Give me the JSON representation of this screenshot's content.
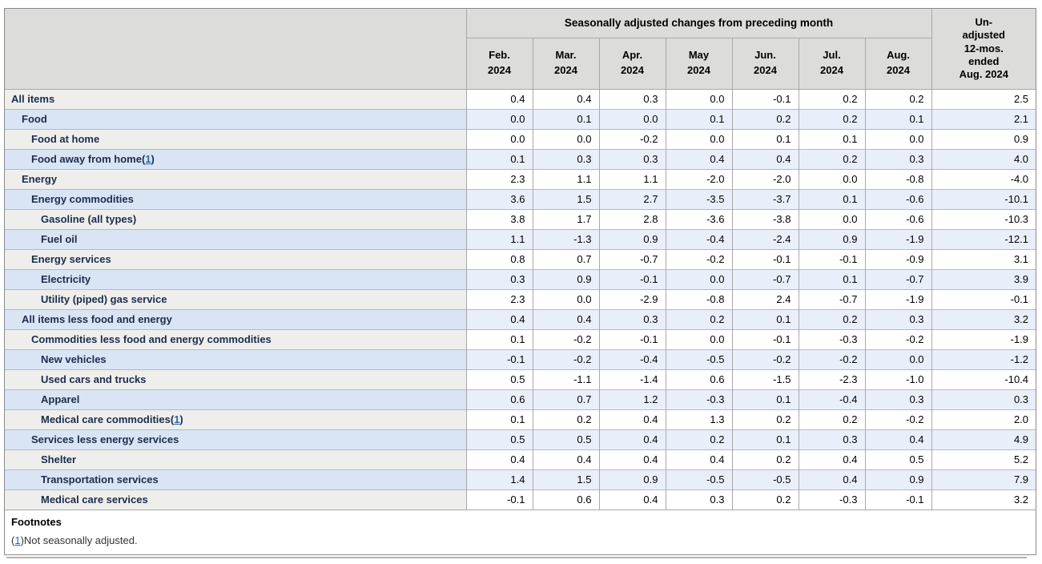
{
  "chart_data": {
    "type": "table",
    "title": "Seasonally adjusted changes from preceding month",
    "unadjusted_column": "Un-\nadjusted\n12-mos.\nended\nAug. 2024",
    "month_columns": [
      "Feb.\n2024",
      "Mar.\n2024",
      "Apr.\n2024",
      "May\n2024",
      "Jun.\n2024",
      "Jul.\n2024",
      "Aug.\n2024"
    ],
    "rows": [
      {
        "label": "All items",
        "indent": 0,
        "footnote": null,
        "values": [
          "0.4",
          "0.4",
          "0.3",
          "0.0",
          "-0.1",
          "0.2",
          "0.2",
          "2.5"
        ]
      },
      {
        "label": "Food",
        "indent": 1,
        "footnote": null,
        "values": [
          "0.0",
          "0.1",
          "0.0",
          "0.1",
          "0.2",
          "0.2",
          "0.1",
          "2.1"
        ]
      },
      {
        "label": "Food at home",
        "indent": 2,
        "footnote": null,
        "values": [
          "0.0",
          "0.0",
          "-0.2",
          "0.0",
          "0.1",
          "0.1",
          "0.0",
          "0.9"
        ]
      },
      {
        "label": "Food away from home",
        "indent": 2,
        "footnote": "1",
        "values": [
          "0.1",
          "0.3",
          "0.3",
          "0.4",
          "0.4",
          "0.2",
          "0.3",
          "4.0"
        ]
      },
      {
        "label": "Energy",
        "indent": 1,
        "footnote": null,
        "values": [
          "2.3",
          "1.1",
          "1.1",
          "-2.0",
          "-2.0",
          "0.0",
          "-0.8",
          "-4.0"
        ]
      },
      {
        "label": "Energy commodities",
        "indent": 2,
        "footnote": null,
        "values": [
          "3.6",
          "1.5",
          "2.7",
          "-3.5",
          "-3.7",
          "0.1",
          "-0.6",
          "-10.1"
        ]
      },
      {
        "label": "Gasoline (all types)",
        "indent": 3,
        "footnote": null,
        "values": [
          "3.8",
          "1.7",
          "2.8",
          "-3.6",
          "-3.8",
          "0.0",
          "-0.6",
          "-10.3"
        ]
      },
      {
        "label": "Fuel oil",
        "indent": 3,
        "footnote": null,
        "values": [
          "1.1",
          "-1.3",
          "0.9",
          "-0.4",
          "-2.4",
          "0.9",
          "-1.9",
          "-12.1"
        ]
      },
      {
        "label": "Energy services",
        "indent": 2,
        "footnote": null,
        "values": [
          "0.8",
          "0.7",
          "-0.7",
          "-0.2",
          "-0.1",
          "-0.1",
          "-0.9",
          "3.1"
        ]
      },
      {
        "label": "Electricity",
        "indent": 3,
        "footnote": null,
        "values": [
          "0.3",
          "0.9",
          "-0.1",
          "0.0",
          "-0.7",
          "0.1",
          "-0.7",
          "3.9"
        ]
      },
      {
        "label": "Utility (piped) gas service",
        "indent": 3,
        "footnote": null,
        "values": [
          "2.3",
          "0.0",
          "-2.9",
          "-0.8",
          "2.4",
          "-0.7",
          "-1.9",
          "-0.1"
        ]
      },
      {
        "label": "All items less food and energy",
        "indent": 1,
        "footnote": null,
        "values": [
          "0.4",
          "0.4",
          "0.3",
          "0.2",
          "0.1",
          "0.2",
          "0.3",
          "3.2"
        ]
      },
      {
        "label": "Commodities less food and energy commodities",
        "indent": 2,
        "footnote": null,
        "values": [
          "0.1",
          "-0.2",
          "-0.1",
          "0.0",
          "-0.1",
          "-0.3",
          "-0.2",
          "-1.9"
        ]
      },
      {
        "label": "New vehicles",
        "indent": 3,
        "footnote": null,
        "values": [
          "-0.1",
          "-0.2",
          "-0.4",
          "-0.5",
          "-0.2",
          "-0.2",
          "0.0",
          "-1.2"
        ]
      },
      {
        "label": "Used cars and trucks",
        "indent": 3,
        "footnote": null,
        "values": [
          "0.5",
          "-1.1",
          "-1.4",
          "0.6",
          "-1.5",
          "-2.3",
          "-1.0",
          "-10.4"
        ]
      },
      {
        "label": "Apparel",
        "indent": 3,
        "footnote": null,
        "values": [
          "0.6",
          "0.7",
          "1.2",
          "-0.3",
          "0.1",
          "-0.4",
          "0.3",
          "0.3"
        ]
      },
      {
        "label": "Medical care commodities",
        "indent": 3,
        "footnote": "1",
        "values": [
          "0.1",
          "0.2",
          "0.4",
          "1.3",
          "0.2",
          "0.2",
          "-0.2",
          "2.0"
        ]
      },
      {
        "label": "Services less energy services",
        "indent": 2,
        "footnote": null,
        "values": [
          "0.5",
          "0.5",
          "0.4",
          "0.2",
          "0.1",
          "0.3",
          "0.4",
          "4.9"
        ]
      },
      {
        "label": "Shelter",
        "indent": 3,
        "footnote": null,
        "values": [
          "0.4",
          "0.4",
          "0.4",
          "0.4",
          "0.2",
          "0.4",
          "0.5",
          "5.2"
        ]
      },
      {
        "label": "Transportation services",
        "indent": 3,
        "footnote": null,
        "values": [
          "1.4",
          "1.5",
          "0.9",
          "-0.5",
          "-0.5",
          "0.4",
          "0.9",
          "7.9"
        ]
      },
      {
        "label": "Medical care services",
        "indent": 3,
        "footnote": null,
        "values": [
          "-0.1",
          "0.6",
          "0.4",
          "0.3",
          "0.2",
          "-0.3",
          "-0.1",
          "3.2"
        ]
      }
    ],
    "footnotes": {
      "title": "Footnotes",
      "items": [
        {
          "ref": "1",
          "text": "Not seasonally adjusted."
        }
      ]
    }
  },
  "colors": {
    "header_bg": "#dcdcda",
    "row_gray_label_bg": "#eeeeec",
    "row_gray_data_bg": "#ffffff",
    "row_blue_label_bg": "#d9e4f4",
    "row_blue_data_bg": "#e9effa",
    "border": "#a8a8a8",
    "outer_border": "#8a8a8a",
    "label_text": "#1c2c4c",
    "value_text": "#000000",
    "link": "#2a65a5"
  }
}
